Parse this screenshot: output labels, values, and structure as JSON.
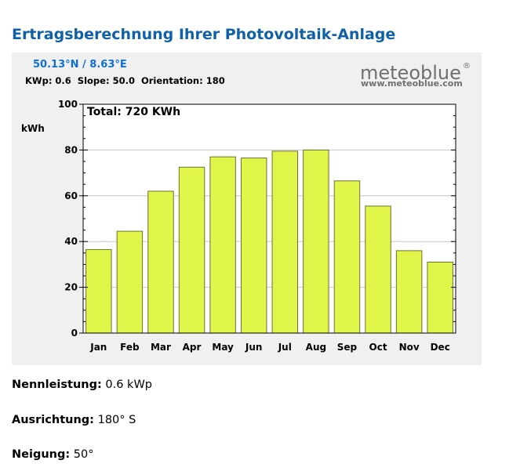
{
  "page": {
    "title": "Ertragsberechnung Ihrer Photovoltaik-Anlage"
  },
  "chart_header": {
    "coords": "50.13°N / 8.63°E",
    "params": "KWp: 0.6  Slope: 50.0  Orientation: 180",
    "brand": "meteoblue",
    "brand_mark": "®",
    "brand_url": "www.meteoblue.com",
    "coords_color": "#1070d0",
    "brand_color": "#707070"
  },
  "chart_data": {
    "type": "bar",
    "categories": [
      "Jan",
      "Feb",
      "Mar",
      "Apr",
      "May",
      "Jun",
      "Jul",
      "Aug",
      "Sep",
      "Oct",
      "Nov",
      "Dec"
    ],
    "values": [
      36.5,
      44.5,
      62,
      72.5,
      77,
      76.5,
      79.5,
      80,
      66.5,
      55.5,
      36,
      31
    ],
    "annotation": "Total: 720 KWh",
    "ylabel": "kWh",
    "xlabel": "",
    "ylim": [
      0,
      100
    ],
    "yticks": [
      0,
      20,
      40,
      60,
      80,
      100
    ],
    "grid": true,
    "bar_color": "#e0f54a",
    "bar_stroke": "#707030"
  },
  "info": {
    "power_label": "Nennleistung:",
    "power_value": "0.6 kWp",
    "orientation_label": "Ausrichtung:",
    "orientation_value": "180° S",
    "tilt_label": "Neigung:",
    "tilt_value": "50°"
  }
}
